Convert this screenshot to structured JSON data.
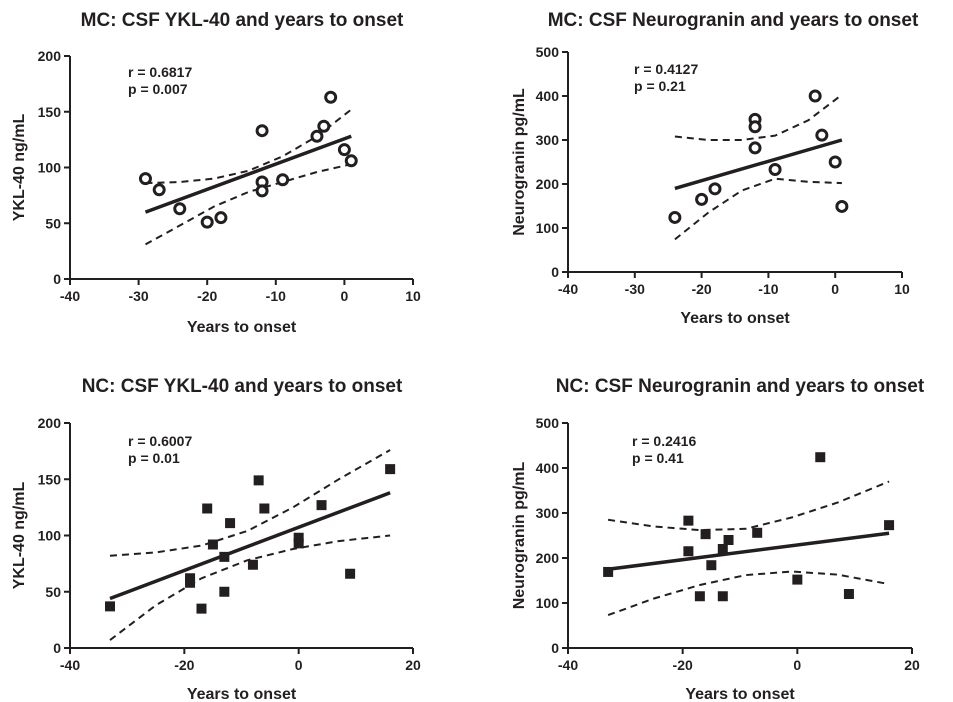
{
  "colors": {
    "ink": "#231f20",
    "background": "#ffffff"
  },
  "chart_data": [
    {
      "type": "scatter",
      "title": "MC: CSF YKL-40 and years to onset",
      "xlabel": "Years to onset",
      "ylabel": "YKL-40 ng/mL",
      "xlim": [
        -40,
        10
      ],
      "ylim": [
        0,
        200
      ],
      "xticks": [
        "-40",
        "-30",
        "-20",
        "-10",
        "0",
        "10"
      ],
      "yticks": [
        "0",
        "50",
        "100",
        "150",
        "200"
      ],
      "marker": "open-circle",
      "stats": {
        "r": "r = 0.6817",
        "p": "p = 0.007"
      },
      "points": [
        {
          "x": -29,
          "y": 90
        },
        {
          "x": -27,
          "y": 80
        },
        {
          "x": -24,
          "y": 63
        },
        {
          "x": -20,
          "y": 51
        },
        {
          "x": -18,
          "y": 55
        },
        {
          "x": -12,
          "y": 133
        },
        {
          "x": -12,
          "y": 87
        },
        {
          "x": -12,
          "y": 79
        },
        {
          "x": -9,
          "y": 89
        },
        {
          "x": -4,
          "y": 128
        },
        {
          "x": -3,
          "y": 137
        },
        {
          "x": -2,
          "y": 163
        },
        {
          "x": 0,
          "y": 116
        },
        {
          "x": 1,
          "y": 106
        }
      ],
      "fit": {
        "x": [
          -29,
          1
        ],
        "y": [
          60,
          128
        ]
      },
      "ci_upper": {
        "x": [
          -29,
          -24,
          -19,
          -14,
          -9,
          -4,
          1
        ],
        "y": [
          86,
          87,
          90,
          97,
          110,
          128,
          152
        ]
      },
      "ci_lower": {
        "x": [
          -29,
          -24,
          -19,
          -14,
          -9,
          -4,
          1
        ],
        "y": [
          31,
          48,
          65,
          78,
          87,
          96,
          103
        ]
      }
    },
    {
      "type": "scatter",
      "title": "MC: CSF Neurogranin and years to onset",
      "xlabel": "Years to onset",
      "ylabel": "Neurogranin pg/mL",
      "xlim": [
        -40,
        10
      ],
      "ylim": [
        0,
        500
      ],
      "xticks": [
        "-40",
        "-30",
        "-20",
        "-10",
        "0",
        "10"
      ],
      "yticks": [
        "0",
        "100",
        "200",
        "300",
        "400",
        "500"
      ],
      "marker": "open-circle",
      "stats": {
        "r": "r = 0.4127",
        "p": "p = 0.21"
      },
      "points": [
        {
          "x": -24,
          "y": 124
        },
        {
          "x": -20,
          "y": 165
        },
        {
          "x": -18,
          "y": 189
        },
        {
          "x": -12,
          "y": 347
        },
        {
          "x": -12,
          "y": 330
        },
        {
          "x": -12,
          "y": 282
        },
        {
          "x": -9,
          "y": 233
        },
        {
          "x": -3,
          "y": 400
        },
        {
          "x": -2,
          "y": 311
        },
        {
          "x": 0,
          "y": 250
        },
        {
          "x": 1,
          "y": 149
        }
      ],
      "fit": {
        "x": [
          -24,
          1
        ],
        "y": [
          190,
          300
        ]
      },
      "ci_upper": {
        "x": [
          -24,
          -19,
          -14,
          -9,
          -4,
          1
        ],
        "y": [
          308,
          300,
          300,
          310,
          345,
          403
        ]
      },
      "ci_lower": {
        "x": [
          -24,
          -19,
          -14,
          -9,
          -4,
          1
        ],
        "y": [
          74,
          135,
          185,
          212,
          205,
          202
        ]
      }
    },
    {
      "type": "scatter",
      "title": "NC: CSF YKL-40 and years to onset",
      "xlabel": "Years to onset",
      "ylabel": "YKL-40 ng/mL",
      "xlim": [
        -40,
        20
      ],
      "ylim": [
        0,
        200
      ],
      "xticks": [
        "-40",
        "-20",
        "0",
        "20"
      ],
      "yticks": [
        "0",
        "50",
        "100",
        "150",
        "200"
      ],
      "marker": "filled-square",
      "stats": {
        "r": "r = 0.6007",
        "p": "p = 0.01"
      },
      "points": [
        {
          "x": -33,
          "y": 37
        },
        {
          "x": -19,
          "y": 62
        },
        {
          "x": -19,
          "y": 58
        },
        {
          "x": -17,
          "y": 35
        },
        {
          "x": -16,
          "y": 124
        },
        {
          "x": -15,
          "y": 92
        },
        {
          "x": -13,
          "y": 81
        },
        {
          "x": -13,
          "y": 50
        },
        {
          "x": -12,
          "y": 111
        },
        {
          "x": -8,
          "y": 74
        },
        {
          "x": -7,
          "y": 149
        },
        {
          "x": -6,
          "y": 124
        },
        {
          "x": 0,
          "y": 98
        },
        {
          "x": 0,
          "y": 93
        },
        {
          "x": 4,
          "y": 127
        },
        {
          "x": 9,
          "y": 66
        },
        {
          "x": 16,
          "y": 159
        }
      ],
      "fit": {
        "x": [
          -33,
          16
        ],
        "y": [
          44,
          138
        ]
      },
      "ci_upper": {
        "x": [
          -33,
          -25,
          -17,
          -9,
          -1,
          7,
          16
        ],
        "y": [
          82,
          85,
          91,
          104,
          125,
          150,
          176
        ]
      },
      "ci_lower": {
        "x": [
          -33,
          -25,
          -17,
          -9,
          -1,
          7,
          16
        ],
        "y": [
          7,
          38,
          62,
          78,
          88,
          95,
          100
        ]
      }
    },
    {
      "type": "scatter",
      "title": "NC: CSF Neurogranin and years to onset",
      "xlabel": "Years to onset",
      "ylabel": "Neurogranin pg/mL",
      "xlim": [
        -40,
        20
      ],
      "ylim": [
        0,
        500
      ],
      "xticks": [
        "-40",
        "-20",
        "0",
        "20"
      ],
      "yticks": [
        "0",
        "100",
        "200",
        "300",
        "400",
        "500"
      ],
      "marker": "filled-square",
      "stats": {
        "r": "r = 0.2416",
        "p": "p = 0.41"
      },
      "points": [
        {
          "x": -33,
          "y": 169
        },
        {
          "x": -19,
          "y": 283
        },
        {
          "x": -19,
          "y": 215
        },
        {
          "x": -17,
          "y": 115
        },
        {
          "x": -16,
          "y": 253
        },
        {
          "x": -15,
          "y": 184
        },
        {
          "x": -13,
          "y": 220
        },
        {
          "x": -13,
          "y": 115
        },
        {
          "x": -12,
          "y": 240
        },
        {
          "x": -7,
          "y": 256
        },
        {
          "x": 0,
          "y": 152
        },
        {
          "x": 4,
          "y": 424
        },
        {
          "x": 9,
          "y": 120
        },
        {
          "x": 16,
          "y": 273
        }
      ],
      "fit": {
        "x": [
          -33,
          16
        ],
        "y": [
          175,
          255
        ]
      },
      "ci_upper": {
        "x": [
          -33,
          -25,
          -17,
          -9,
          -1,
          7,
          16
        ],
        "y": [
          285,
          270,
          262,
          265,
          290,
          323,
          370
        ]
      },
      "ci_lower": {
        "x": [
          -33,
          -25,
          -17,
          -9,
          -1,
          7,
          16
        ],
        "y": [
          73,
          110,
          140,
          162,
          170,
          163,
          142
        ]
      }
    }
  ]
}
